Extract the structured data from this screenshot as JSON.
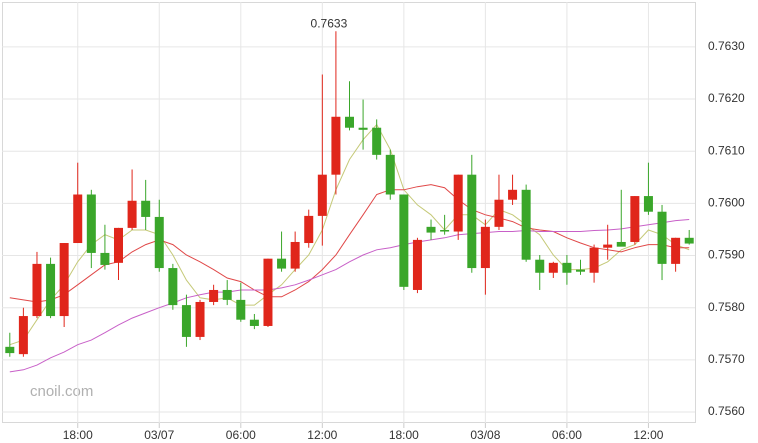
{
  "chart_data": {
    "type": "candlestick",
    "categories": [
      null,
      null,
      null,
      null,
      null,
      "18:00",
      null,
      null,
      null,
      null,
      null,
      "03/07",
      null,
      null,
      null,
      null,
      null,
      "06:00",
      null,
      null,
      null,
      null,
      null,
      "12:00",
      null,
      null,
      null,
      null,
      null,
      "18:00",
      null,
      null,
      null,
      null,
      null,
      "03/08",
      null,
      null,
      null,
      null,
      null,
      "06:00",
      null,
      null,
      null,
      null,
      null,
      "12:00",
      null,
      null,
      null
    ],
    "open": [
      0.75725,
      0.75711,
      0.75784,
      0.75884,
      0.75784,
      0.75924,
      0.76017,
      0.75905,
      0.75886,
      0.75953,
      0.76005,
      0.75974,
      0.75876,
      0.75805,
      0.75744,
      0.75811,
      0.75834,
      0.75815,
      0.75777,
      0.75765,
      0.75894,
      0.75875,
      0.75924,
      0.75976,
      0.76055,
      0.76166,
      0.76145,
      0.76145,
      0.76093,
      0.76017,
      0.75834,
      0.75955,
      0.75949,
      0.75946,
      0.76055,
      0.75876,
      0.75955,
      0.76007,
      0.76026,
      0.75892,
      0.75867,
      0.75886,
      0.75873,
      0.75867,
      0.75915,
      0.75926,
      0.75926,
      0.76014,
      0.75984,
      0.75884,
      0.75934
    ],
    "high": [
      0.75752,
      0.758,
      0.75907,
      0.75896,
      0.75924,
      0.76078,
      0.76026,
      0.75959,
      0.75953,
      0.76065,
      0.76045,
      0.76007,
      0.75884,
      0.75825,
      0.75815,
      0.75844,
      0.75853,
      0.75848,
      0.75788,
      0.75894,
      0.75946,
      0.75946,
      0.75988,
      0.76247,
      0.7633,
      0.76234,
      0.76199,
      0.76161,
      0.76103,
      0.76017,
      0.75934,
      0.75969,
      0.75978,
      0.76055,
      0.76093,
      0.75969,
      0.76055,
      0.76055,
      0.76036,
      0.75901,
      0.75888,
      0.75901,
      0.75892,
      0.75921,
      0.75959,
      0.76026,
      0.76014,
      0.76078,
      0.75997,
      0.75934,
      0.75949
    ],
    "low": [
      0.75706,
      0.75706,
      0.7578,
      0.7578,
      0.75763,
      0.75924,
      0.75876,
      0.75873,
      0.75853,
      0.75949,
      0.75949,
      0.75869,
      0.75796,
      0.75725,
      0.75738,
      0.75805,
      0.75805,
      0.75773,
      0.75759,
      0.75763,
      0.75869,
      0.75869,
      0.75915,
      0.75919,
      0.76017,
      0.7614,
      0.76103,
      0.76084,
      0.76007,
      0.75834,
      0.75828,
      0.7593,
      0.7594,
      0.7593,
      0.75867,
      0.75825,
      0.75949,
      0.75997,
      0.75888,
      0.75834,
      0.75857,
      0.75844,
      0.75863,
      0.75848,
      0.75892,
      0.75921,
      0.75921,
      0.75978,
      0.75853,
      0.75869,
      0.75921
    ],
    "close": [
      0.75713,
      0.75784,
      0.75884,
      0.75784,
      0.75924,
      0.76017,
      0.75905,
      0.75882,
      0.75953,
      0.76005,
      0.75974,
      0.75876,
      0.75805,
      0.75744,
      0.75811,
      0.75834,
      0.75815,
      0.75777,
      0.75765,
      0.75894,
      0.75875,
      0.75926,
      0.75976,
      0.76055,
      0.76166,
      0.76145,
      0.76141,
      0.76093,
      0.76017,
      0.7584,
      0.7593,
      0.75944,
      0.75946,
      0.76055,
      0.75876,
      0.75955,
      0.76007,
      0.76026,
      0.75892,
      0.75867,
      0.75886,
      0.75867,
      0.75869,
      0.75915,
      0.75921,
      0.75917,
      0.76014,
      0.75984,
      0.75884,
      0.75934,
      0.75923
    ],
    "up_color": "#e0261b",
    "down_color": "#3aa62a",
    "series": [
      {
        "color": "#c5c978",
        "values": [
          0.75729,
          0.75738,
          0.75777,
          0.75815,
          0.75844,
          0.75888,
          0.75921,
          0.7594,
          0.7593,
          0.75949,
          0.75949,
          0.7594,
          0.75901,
          0.75853,
          0.75819,
          0.75815,
          0.75819,
          0.75805,
          0.75805,
          0.75825,
          0.75844,
          0.75873,
          0.75901,
          0.75949,
          0.76026,
          0.76084,
          0.76122,
          0.76151,
          0.76103,
          0.76026,
          0.75997,
          0.75978,
          0.75949,
          0.75978,
          0.75978,
          0.75959,
          0.75988,
          0.75978,
          0.75959,
          0.7594,
          0.75901,
          0.75873,
          0.75873,
          0.75876,
          0.75888,
          0.75911,
          0.75921,
          0.75949,
          0.7594,
          0.75921,
          0.75911
        ]
      },
      {
        "color": "#e04848",
        "values": [
          0.75819,
          0.75815,
          0.75811,
          0.75815,
          0.75825,
          0.75844,
          0.75863,
          0.75882,
          0.75888,
          0.75907,
          0.75921,
          0.7593,
          0.75921,
          0.75901,
          0.75888,
          0.75873,
          0.75857,
          0.7585,
          0.75834,
          0.75821,
          0.75821,
          0.75834,
          0.7585,
          0.75873,
          0.75901,
          0.7594,
          0.75978,
          0.76017,
          0.76026,
          0.76026,
          0.76032,
          0.76036,
          0.7603,
          0.76007,
          0.75988,
          0.75978,
          0.75972,
          0.75965,
          0.75953,
          0.75949,
          0.75946,
          0.75934,
          0.75924,
          0.75915,
          0.75911,
          0.75907,
          0.75915,
          0.75921,
          0.75921,
          0.75915,
          0.75915
        ]
      },
      {
        "color": "#c860c8",
        "values": [
          0.75677,
          0.75681,
          0.7569,
          0.75704,
          0.75715,
          0.75729,
          0.75738,
          0.75752,
          0.75767,
          0.7578,
          0.7579,
          0.758,
          0.75809,
          0.75819,
          0.75825,
          0.7583,
          0.7583,
          0.75834,
          0.75834,
          0.75834,
          0.75838,
          0.75844,
          0.75853,
          0.75863,
          0.75873,
          0.75888,
          0.75901,
          0.75911,
          0.75915,
          0.75921,
          0.75926,
          0.7593,
          0.75934,
          0.7594,
          0.75942,
          0.75944,
          0.75946,
          0.75946,
          0.75948,
          0.75946,
          0.75946,
          0.75946,
          0.75946,
          0.75948,
          0.75949,
          0.75951,
          0.75955,
          0.75959,
          0.75963,
          0.75967,
          0.75969
        ]
      }
    ],
    "ylim": [
      0.75579,
      0.76386
    ],
    "yticks": [
      {
        "value": 0.756,
        "label": "0.7560"
      },
      {
        "value": 0.757,
        "label": "0.7570"
      },
      {
        "value": 0.758,
        "label": "0.7580"
      },
      {
        "value": 0.759,
        "label": "0.7590"
      },
      {
        "value": 0.76,
        "label": "0.7600"
      },
      {
        "value": 0.761,
        "label": "0.7610"
      },
      {
        "value": 0.762,
        "label": "0.7620"
      },
      {
        "value": 0.763,
        "label": "0.7630"
      }
    ],
    "grid": true,
    "watermark": "cnoil.com"
  }
}
